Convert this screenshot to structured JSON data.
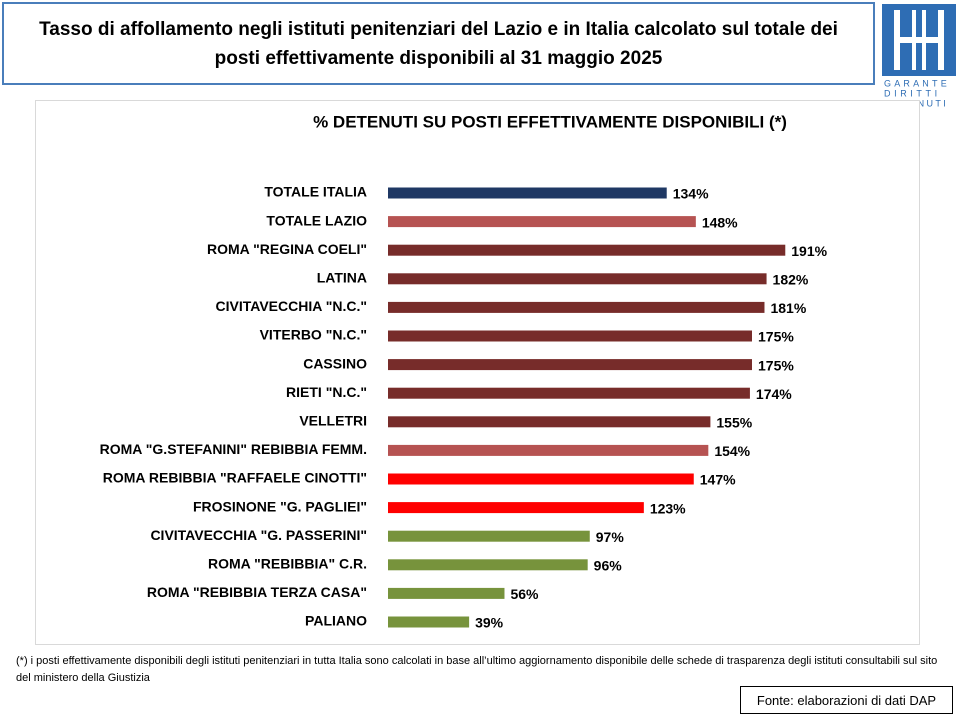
{
  "header": {
    "title": "Tasso di affollamento negli istituti penitenziari del Lazio e in Italia calcolato sul totale dei posti effettivamente disponibili al 31 maggio 2025"
  },
  "logo": {
    "lines": [
      "GARANTE",
      "DIRITTI",
      "DETENUTI"
    ]
  },
  "chart_data": {
    "type": "bar",
    "orientation": "horizontal",
    "title": "% DETENUTI SU POSTI EFFETTIVAMENTE DISPONIBILI (*)",
    "categories": [
      "TOTALE ITALIA",
      "TOTALE LAZIO",
      "ROMA \"REGINA COELI\"",
      "LATINA",
      "CIVITAVECCHIA \"N.C.\"",
      "VITERBO \"N.C.\"",
      "CASSINO",
      "RIETI \"N.C.\"",
      "VELLETRI",
      "ROMA \"G.STEFANINI\" REBIBBIA FEMM.",
      "ROMA REBIBBIA \"RAFFAELE CINOTTI\"",
      "FROSINONE \"G. PAGLIEI\"",
      "CIVITAVECCHIA \"G. PASSERINI\"",
      "ROMA \"REBIBBIA\" C.R.",
      "ROMA \"REBIBBIA TERZA CASA\"",
      "PALIANO"
    ],
    "values": [
      134,
      148,
      191,
      182,
      181,
      175,
      175,
      174,
      155,
      154,
      147,
      123,
      97,
      96,
      56,
      39
    ],
    "value_labels": [
      "134%",
      "148%",
      "191%",
      "182%",
      "181%",
      "175%",
      "175%",
      "174%",
      "155%",
      "154%",
      "147%",
      "123%",
      "97%",
      "96%",
      "56%",
      "39%"
    ],
    "colors": [
      "#1f3864",
      "#b65352",
      "#772c2a",
      "#772c2a",
      "#772c2a",
      "#772c2a",
      "#772c2a",
      "#772c2a",
      "#772c2a",
      "#b65352",
      "#ff0000",
      "#ff0000",
      "#77933c",
      "#77933c",
      "#77933c",
      "#77933c"
    ]
  },
  "footnote": "(*) i posti effettivamente disponibili  degli istituti penitenziari in tutta Italia sono calcolati in base all’ultimo aggiornamento disponibile delle schede di trasparenza degli istituti consultabili sul sito del ministero della Giustizia",
  "source": "Fonte: elaborazioni di dati DAP"
}
